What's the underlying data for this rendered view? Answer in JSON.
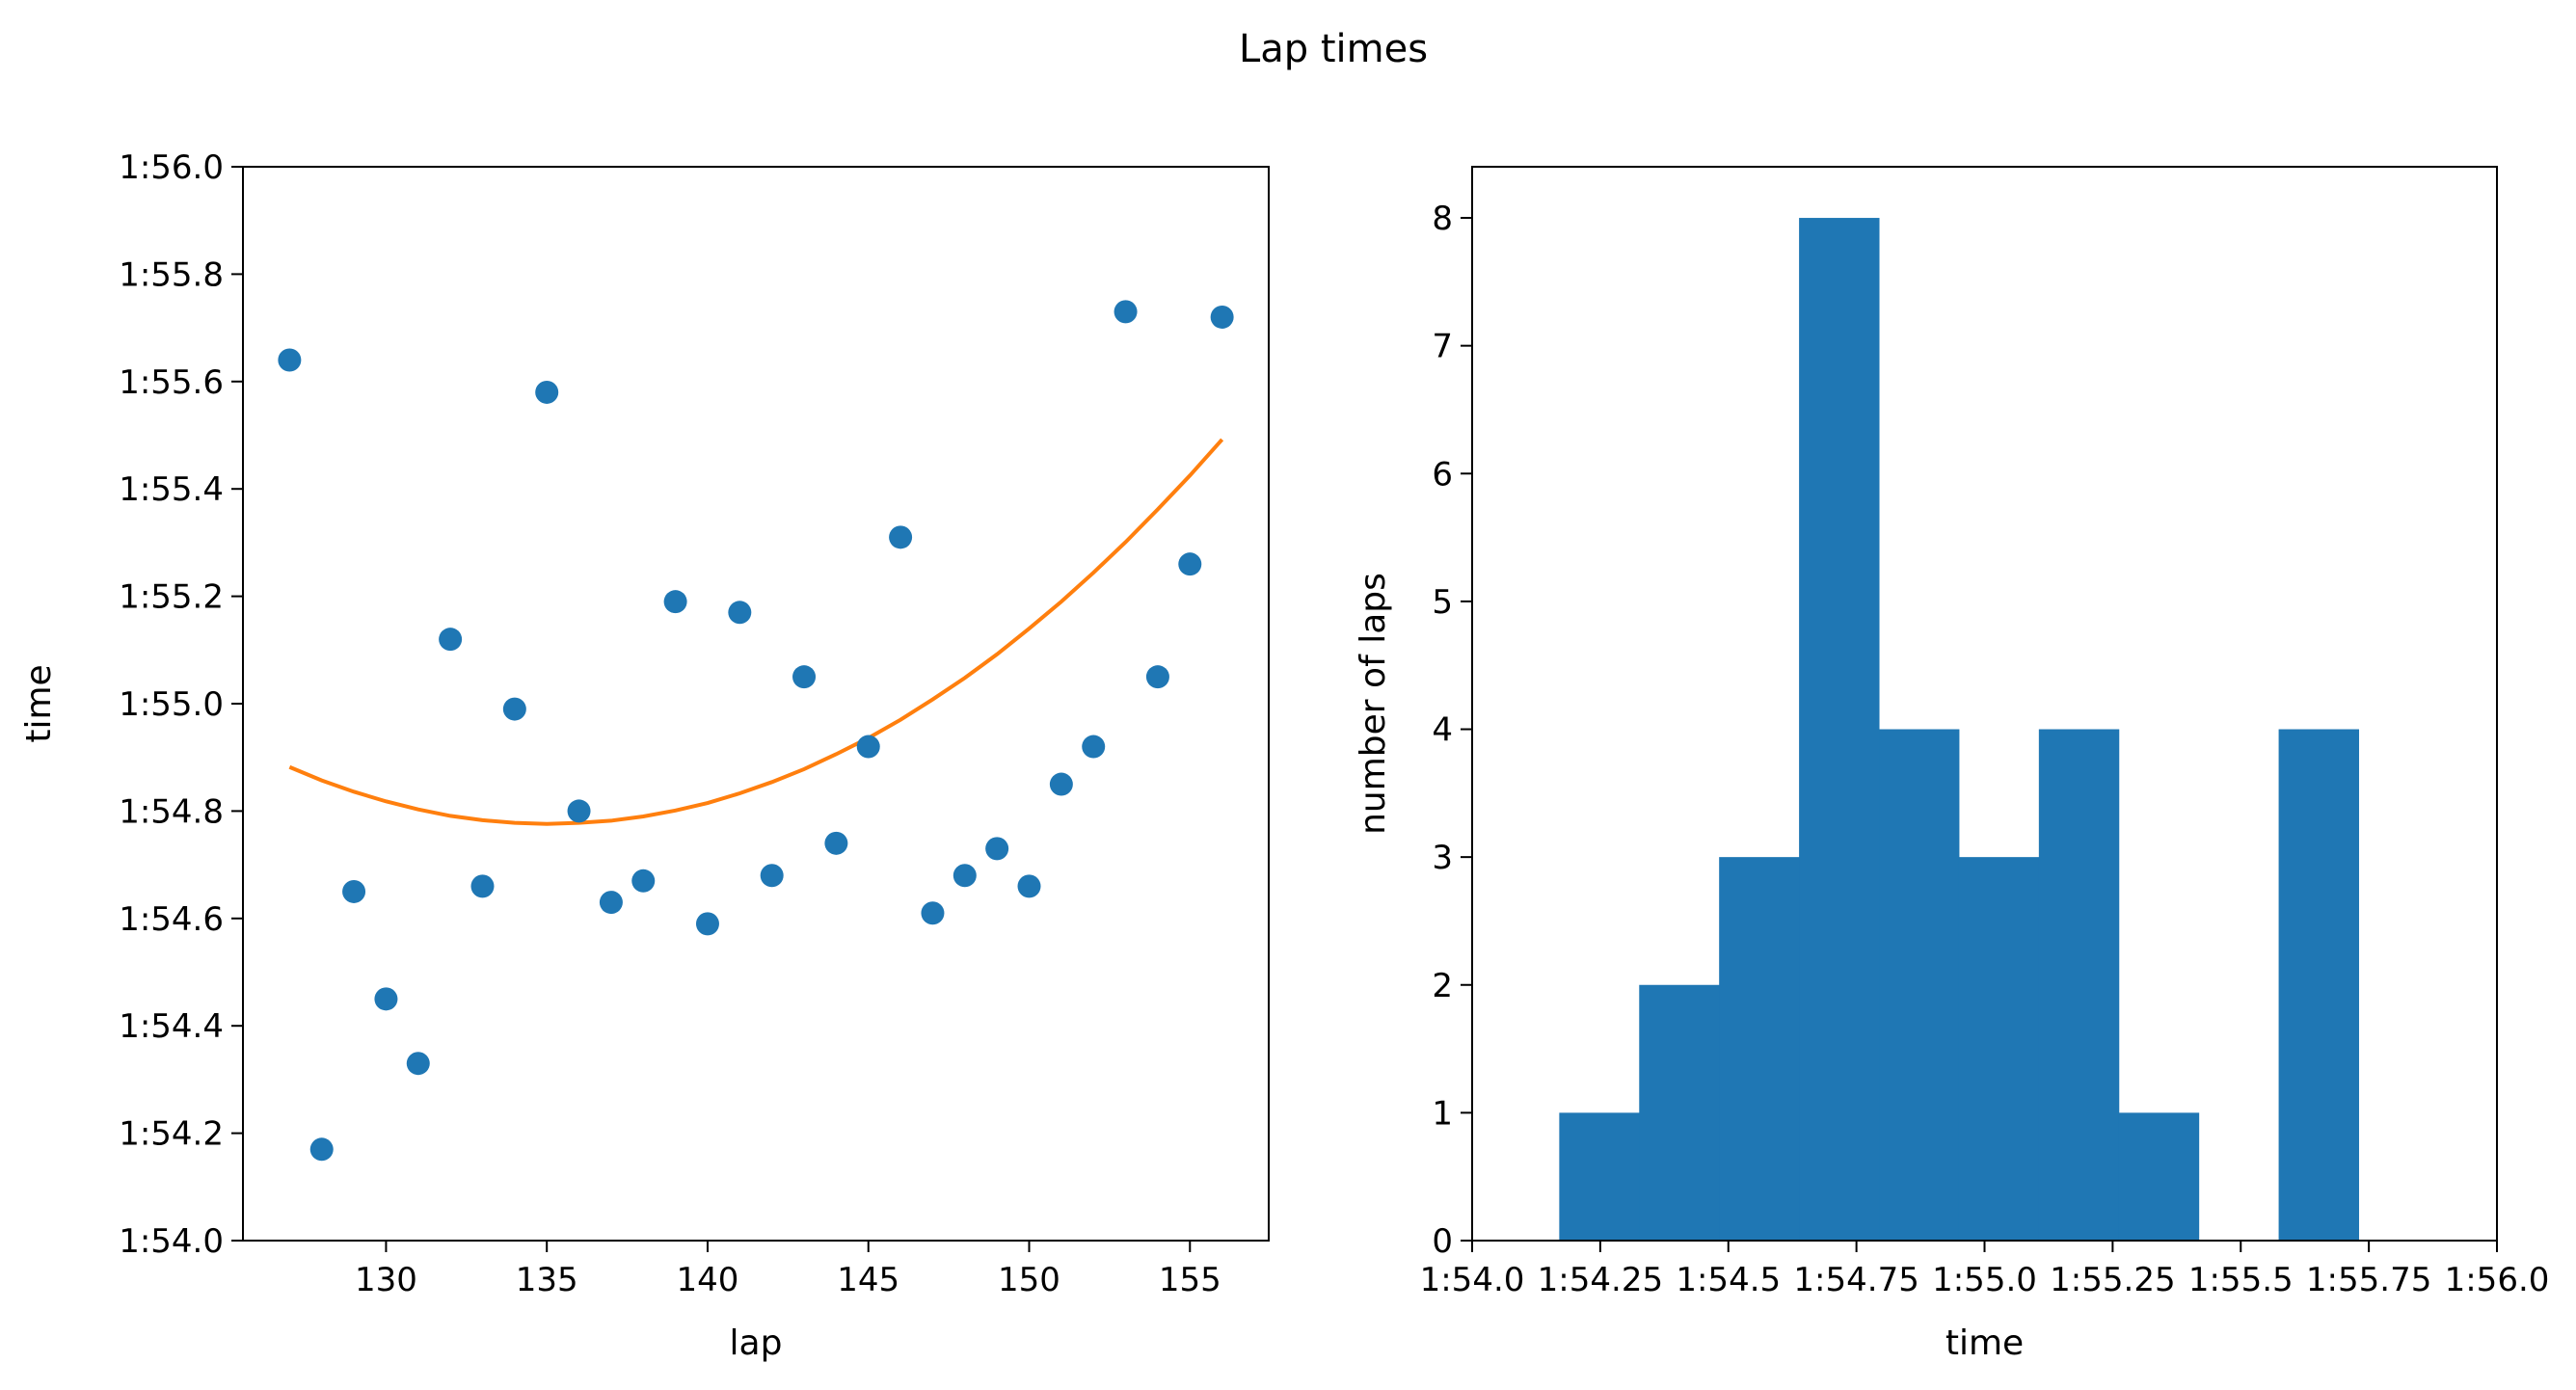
{
  "chart_data": {
    "title": "Lap times",
    "colors": {
      "scatter": "#1f77b4",
      "fit_line": "#ff7f0e",
      "hist_bars": "#1f77b4"
    },
    "panels": [
      {
        "type": "scatter",
        "xlabel": "lap",
        "ylabel": "time",
        "xlim": [
          125.55,
          157.45
        ],
        "ylim": [
          114.0,
          116.0
        ],
        "xticks": [
          130,
          135,
          140,
          145,
          150,
          155
        ],
        "yticks": [
          114.0,
          114.2,
          114.4,
          114.6,
          114.8,
          115.0,
          115.2,
          115.4,
          115.6,
          115.8,
          116.0
        ],
        "ytick_labels": [
          "1:54.0",
          "1:54.2",
          "1:54.4",
          "1:54.6",
          "1:54.8",
          "1:55.0",
          "1:55.2",
          "1:55.4",
          "1:55.6",
          "1:55.8",
          "1:56.0"
        ],
        "grid": false,
        "points": [
          {
            "x": 127,
            "y": 115.64
          },
          {
            "x": 128,
            "y": 114.17
          },
          {
            "x": 129,
            "y": 114.65
          },
          {
            "x": 130,
            "y": 114.45
          },
          {
            "x": 131,
            "y": 114.33
          },
          {
            "x": 132,
            "y": 115.12
          },
          {
            "x": 133,
            "y": 114.66
          },
          {
            "x": 134,
            "y": 114.99
          },
          {
            "x": 135,
            "y": 115.58
          },
          {
            "x": 136,
            "y": 114.8
          },
          {
            "x": 137,
            "y": 114.63
          },
          {
            "x": 138,
            "y": 114.67
          },
          {
            "x": 139,
            "y": 115.19
          },
          {
            "x": 140,
            "y": 114.59
          },
          {
            "x": 141,
            "y": 115.17
          },
          {
            "x": 142,
            "y": 114.68
          },
          {
            "x": 143,
            "y": 115.05
          },
          {
            "x": 144,
            "y": 114.74
          },
          {
            "x": 145,
            "y": 114.92
          },
          {
            "x": 146,
            "y": 115.31
          },
          {
            "x": 147,
            "y": 114.61
          },
          {
            "x": 148,
            "y": 114.68
          },
          {
            "x": 149,
            "y": 114.73
          },
          {
            "x": 150,
            "y": 114.66
          },
          {
            "x": 151,
            "y": 114.85
          },
          {
            "x": 152,
            "y": 114.92
          },
          {
            "x": 153,
            "y": 115.73
          },
          {
            "x": 154,
            "y": 115.05
          },
          {
            "x": 155,
            "y": 115.26
          },
          {
            "x": 156,
            "y": 115.72
          }
        ],
        "fit_curve": {
          "x": [
            127,
            128,
            129,
            130,
            131,
            132,
            133,
            134,
            135,
            136,
            137,
            138,
            139,
            140,
            141,
            142,
            143,
            144,
            145,
            146,
            147,
            148,
            149,
            150,
            151,
            152,
            153,
            154,
            155,
            156
          ],
          "y": [
            114.882,
            114.857,
            114.836,
            114.818,
            114.803,
            114.791,
            114.783,
            114.778,
            114.776,
            114.778,
            114.782,
            114.79,
            114.801,
            114.815,
            114.833,
            114.854,
            114.878,
            114.906,
            114.936,
            114.97,
            115.008,
            115.048,
            115.092,
            115.14,
            115.19,
            115.244,
            115.301,
            115.362,
            115.425,
            115.492
          ]
        }
      },
      {
        "type": "histogram",
        "xlabel": "time",
        "ylabel": "number of laps",
        "xlim": [
          114.0,
          116.0
        ],
        "ylim": [
          0,
          8.4
        ],
        "xticks": [
          114.0,
          114.25,
          114.5,
          114.75,
          115.0,
          115.25,
          115.5,
          115.75,
          116.0
        ],
        "xtick_labels": [
          "1:54.0",
          "1:54.25",
          "1:54.5",
          "1:54.75",
          "1:55.0",
          "1:55.25",
          "1:55.5",
          "1:55.75",
          "1:56.0"
        ],
        "yticks": [
          0,
          1,
          2,
          3,
          4,
          5,
          6,
          7,
          8
        ],
        "grid": false,
        "bin_edges": [
          114.17,
          114.326,
          114.482,
          114.638,
          114.794,
          114.95,
          115.106,
          115.262,
          115.418,
          115.574,
          115.73
        ],
        "counts": [
          1,
          2,
          3,
          8,
          4,
          3,
          4,
          1,
          0,
          4
        ]
      }
    ]
  }
}
